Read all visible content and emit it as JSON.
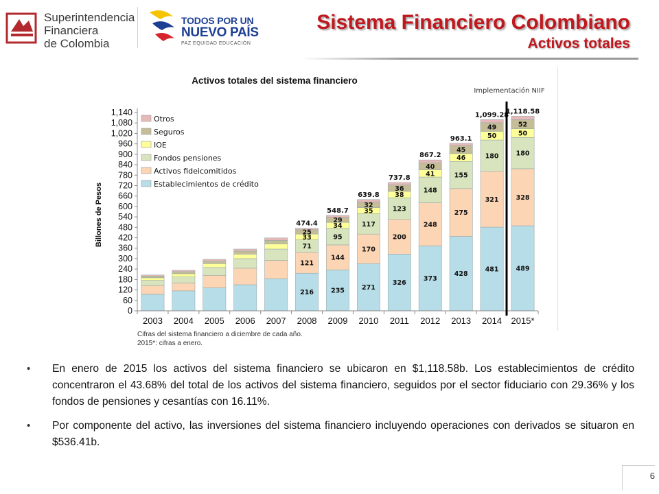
{
  "header": {
    "org_lines": [
      "Superintendencia",
      "Financiera",
      "de Colombia"
    ],
    "gov_line1": "TODOS POR UN",
    "gov_line2": "NUEVO PAÍS",
    "gov_line3": "PAZ  EQUIDAD  EDUCACIÓN",
    "title": "Sistema Financiero Colombiano",
    "subtitle": "Activos totales"
  },
  "chart_data": {
    "type": "bar",
    "stacked": true,
    "title": "Activos totales del sistema financiero",
    "ylabel": "Billones de Pesos",
    "xlabel": "",
    "ylim": [
      0,
      1140
    ],
    "yticks": [
      0,
      60,
      120,
      180,
      240,
      300,
      360,
      420,
      480,
      540,
      600,
      660,
      720,
      780,
      840,
      900,
      960,
      1020,
      1080,
      1140
    ],
    "ytick_labels": [
      "0",
      "60",
      "120",
      "180",
      "240",
      "300",
      "360",
      "420",
      "480",
      "540",
      "600",
      "660",
      "720",
      "780",
      "840",
      "900",
      "960",
      "1,020",
      "1,080",
      "1,140"
    ],
    "categories": [
      "2003",
      "2004",
      "2005",
      "2006",
      "2007",
      "2008",
      "2009",
      "2010",
      "2011",
      "2012",
      "2013",
      "2014",
      "2015*"
    ],
    "series": [
      {
        "name": "Establecimientos de crédito",
        "color": "#b7dde8",
        "values": [
          95,
          115,
          132,
          150,
          185,
          216,
          235,
          271,
          326,
          373,
          428,
          481,
          489
        ]
      },
      {
        "name": "Activos fideicomitidos",
        "color": "#fcd5b5",
        "values": [
          50,
          45,
          72,
          95,
          105,
          121,
          144,
          170,
          200,
          248,
          275,
          321,
          328
        ]
      },
      {
        "name": "Fondos pensiones",
        "color": "#d7e4bd",
        "values": [
          30,
          35,
          45,
          55,
          65,
          71,
          95,
          117,
          123,
          148,
          155,
          180,
          180
        ]
      },
      {
        "name": "IOE",
        "color": "#ffff99",
        "values": [
          15,
          18,
          22,
          26,
          30,
          33,
          34,
          35,
          38,
          41,
          46,
          50,
          50
        ]
      },
      {
        "name": "Seguros",
        "color": "#c4bd97",
        "values": [
          10,
          12,
          15,
          17,
          20,
          25,
          29,
          32,
          36,
          40,
          45,
          49,
          52
        ]
      },
      {
        "name": "Otros",
        "color": "#e6b9b8",
        "values": [
          6,
          8,
          10,
          12,
          14,
          8.4,
          11.7,
          14.8,
          14.8,
          17.2,
          14.1,
          18.28,
          19.58
        ]
      }
    ],
    "totals": [
      "",
      "",
      "",
      "",
      "",
      "474.4",
      "548.7",
      "639.8",
      "737.8",
      "867.2",
      "963.1",
      "1,099.28",
      "1,118.58"
    ],
    "labeled_from_index": 5,
    "annotation": "Implementación NIIF",
    "legend_position": "top-left",
    "notes": [
      "Cifras del sistema financiero a diciembre de cada año.",
      "2015*: cifras a enero."
    ]
  },
  "bullets": [
    "En enero de 2015 los activos del sistema financiero se ubicaron en $1,118.58b. Los establecimientos de crédito concentraron el 43.68% del total de los activos del sistema financiero, seguidos por el sector fiduciario con 29.36% y los fondos de pensiones y cesantías con 16.11%.",
    "Por componente del activo, las inversiones del sistema financiero incluyendo operaciones con derivados se situaron en $536.41b."
  ],
  "page_number": "6",
  "colors": {
    "title_red": "#c0181f",
    "gov_blue": "#1c3f94"
  }
}
